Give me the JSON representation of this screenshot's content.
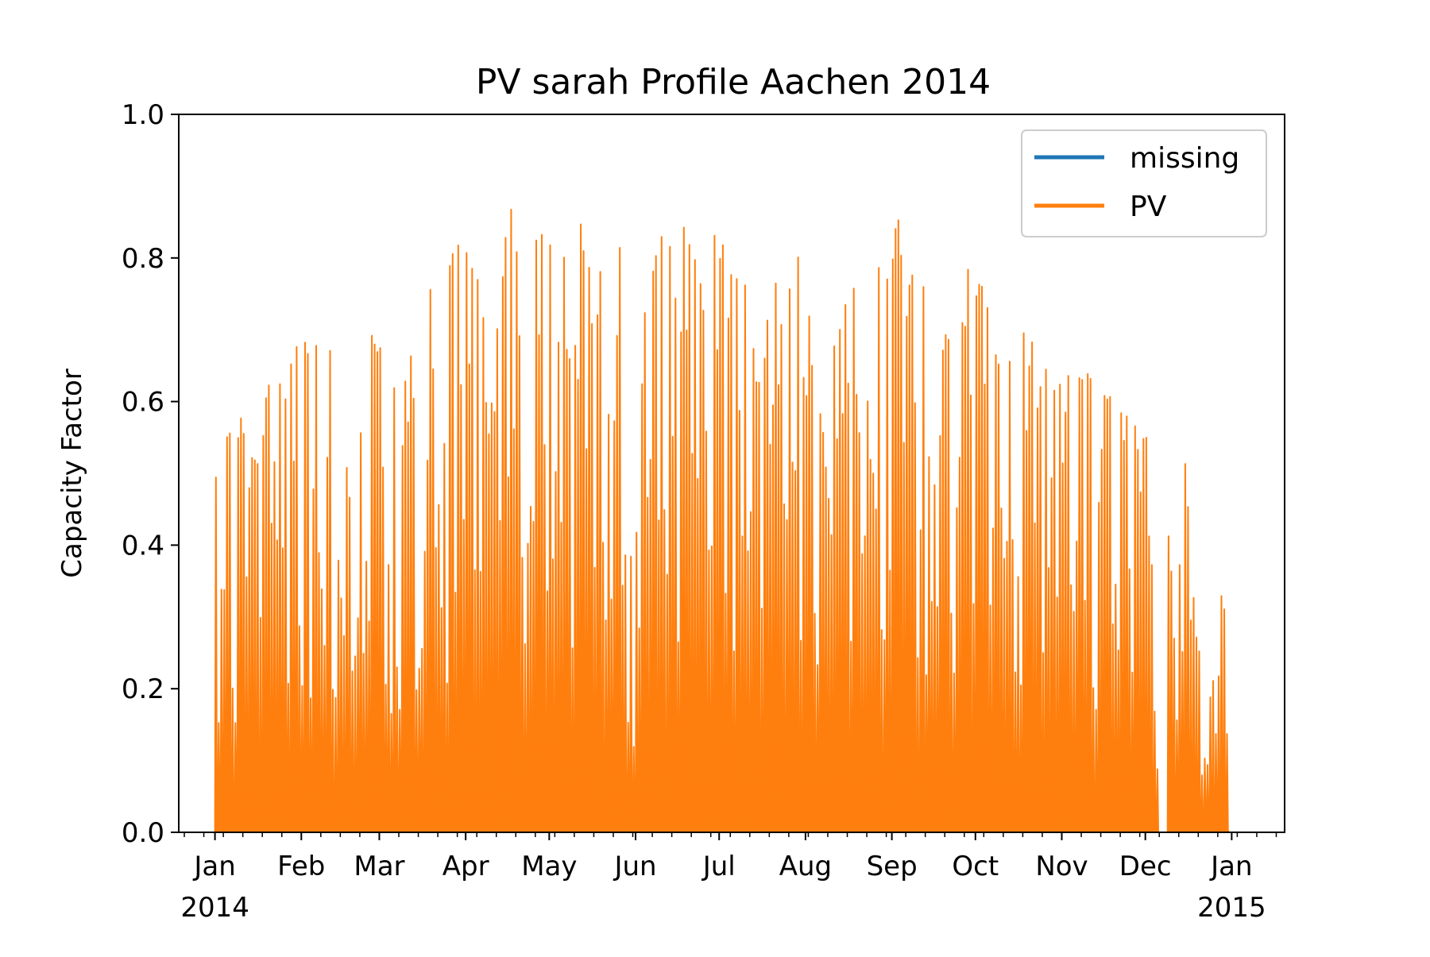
{
  "chart_data": {
    "type": "area",
    "title": "PV sarah Profile Aachen 2014",
    "xlabel": "",
    "ylabel": "Capacity Factor",
    "xlim": [
      "2013-12-19",
      "2015-01-20"
    ],
    "ylim": [
      0,
      1.0
    ],
    "yticks": [
      0.0,
      0.2,
      0.4,
      0.6,
      0.8,
      1.0
    ],
    "ytick_labels": [
      "0.0",
      "0.2",
      "0.4",
      "0.6",
      "0.8",
      "1.0"
    ],
    "xticks": [
      {
        "date": "2014-01-01",
        "label": "Jan",
        "sublabel": "2014"
      },
      {
        "date": "2014-02-01",
        "label": "Feb",
        "sublabel": ""
      },
      {
        "date": "2014-03-01",
        "label": "Mar",
        "sublabel": ""
      },
      {
        "date": "2014-04-01",
        "label": "Apr",
        "sublabel": ""
      },
      {
        "date": "2014-05-01",
        "label": "May",
        "sublabel": ""
      },
      {
        "date": "2014-06-01",
        "label": "Jun",
        "sublabel": ""
      },
      {
        "date": "2014-07-01",
        "label": "Jul",
        "sublabel": ""
      },
      {
        "date": "2014-08-01",
        "label": "Aug",
        "sublabel": ""
      },
      {
        "date": "2014-09-01",
        "label": "Sep",
        "sublabel": ""
      },
      {
        "date": "2014-10-01",
        "label": "Oct",
        "sublabel": ""
      },
      {
        "date": "2014-11-01",
        "label": "Nov",
        "sublabel": ""
      },
      {
        "date": "2014-12-01",
        "label": "Dec",
        "sublabel": ""
      },
      {
        "date": "2015-01-01",
        "label": "Jan",
        "sublabel": "2015"
      }
    ],
    "grid": false,
    "legend_position": "top-right",
    "series": [
      {
        "name": "missing",
        "color": "#1f77b4",
        "dates": [],
        "values": []
      },
      {
        "name": "PV",
        "color": "#ff7f0e",
        "value_kind": "daily peak capacity factor",
        "dates": [
          "2014-01-01",
          "2014-01-06",
          "2014-01-11",
          "2014-01-16",
          "2014-01-21",
          "2014-01-26",
          "2014-01-31",
          "2014-02-05",
          "2014-02-10",
          "2014-02-15",
          "2014-02-20",
          "2014-02-25",
          "2014-03-02",
          "2014-03-07",
          "2014-03-12",
          "2014-03-17",
          "2014-03-22",
          "2014-03-27",
          "2014-04-01",
          "2014-04-06",
          "2014-04-11",
          "2014-04-16",
          "2014-04-21",
          "2014-04-26",
          "2014-05-01",
          "2014-05-06",
          "2014-05-11",
          "2014-05-16",
          "2014-05-21",
          "2014-05-26",
          "2014-05-31",
          "2014-06-05",
          "2014-06-10",
          "2014-06-15",
          "2014-06-20",
          "2014-06-25",
          "2014-06-30",
          "2014-07-05",
          "2014-07-10",
          "2014-07-15",
          "2014-07-20",
          "2014-07-25",
          "2014-07-30",
          "2014-08-04",
          "2014-08-09",
          "2014-08-14",
          "2014-08-19",
          "2014-08-24",
          "2014-08-29",
          "2014-09-03",
          "2014-09-08",
          "2014-09-13",
          "2014-09-18",
          "2014-09-23",
          "2014-09-28",
          "2014-10-03",
          "2014-10-08",
          "2014-10-13",
          "2014-10-18",
          "2014-10-23",
          "2014-10-28",
          "2014-11-02",
          "2014-11-07",
          "2014-11-12",
          "2014-11-17",
          "2014-11-22",
          "2014-11-27",
          "2014-12-02",
          "2014-12-06",
          "2014-12-09",
          "2014-12-14",
          "2014-12-19",
          "2014-12-24",
          "2014-12-29",
          "2014-12-31"
        ],
        "values": [
          0.51,
          0.57,
          0.61,
          0.51,
          0.66,
          0.63,
          0.73,
          0.68,
          0.74,
          0.55,
          0.49,
          0.69,
          0.7,
          0.61,
          0.75,
          0.79,
          0.78,
          0.82,
          0.85,
          0.77,
          0.71,
          0.9,
          0.84,
          0.83,
          0.85,
          0.84,
          0.86,
          0.82,
          0.88,
          0.87,
          0.31,
          0.79,
          0.85,
          0.83,
          0.86,
          0.79,
          0.84,
          0.81,
          0.81,
          0.63,
          0.8,
          0.81,
          0.8,
          0.77,
          0.81,
          0.75,
          0.79,
          0.8,
          0.79,
          0.86,
          0.78,
          0.77,
          0.74,
          0.7,
          0.79,
          0.78,
          0.69,
          0.67,
          0.72,
          0.69,
          0.68,
          0.64,
          0.65,
          0.66,
          0.61,
          0.61,
          0.59,
          0.57,
          0.0,
          0.56,
          0.61,
          0.29,
          0.18,
          0.37,
          0.07
        ]
      }
    ]
  }
}
